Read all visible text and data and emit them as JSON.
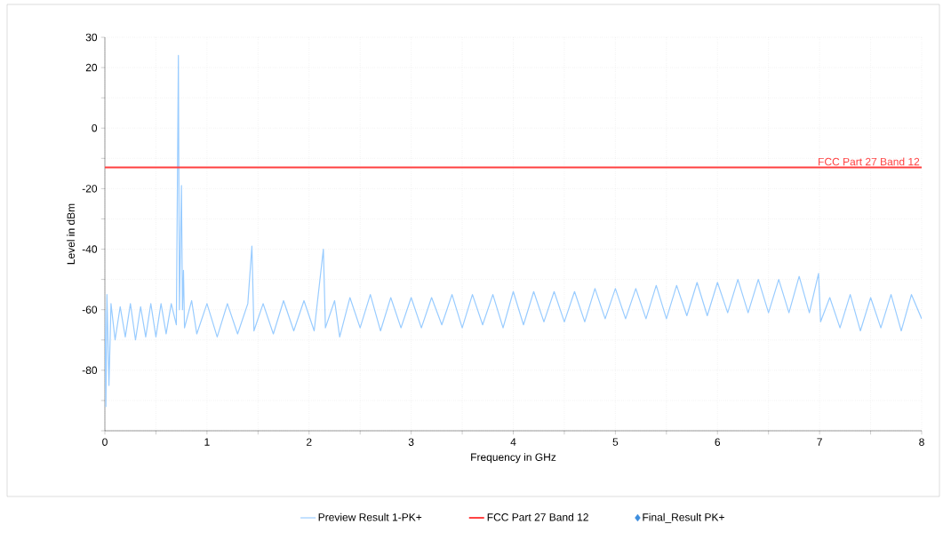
{
  "chart_data": {
    "type": "line",
    "xlabel": "Frequency in GHz",
    "ylabel": "Level in dBm",
    "xlim": [
      0,
      8
    ],
    "ylim": [
      -100,
      30
    ],
    "xticks": [
      0,
      {
        "value": 0.5,
        "label": null
      },
      1,
      {
        "value": 1.5,
        "label": null
      },
      2,
      {
        "value": 2.5,
        "label": null
      },
      3,
      {
        "value": 3.5,
        "label": null
      },
      4,
      {
        "value": 4.5,
        "label": null
      },
      5,
      {
        "value": 5.5,
        "label": null
      },
      6,
      {
        "value": 6.5,
        "label": null
      },
      7,
      {
        "value": 7.5,
        "label": null
      },
      8
    ],
    "yticks": [
      {
        "value": -100,
        "label": null
      },
      {
        "value": -90,
        "label": null
      },
      -80,
      {
        "value": -70,
        "label": null
      },
      -60,
      {
        "value": -50,
        "label": null
      },
      -40,
      {
        "value": -30,
        "label": null
      },
      -20,
      {
        "value": -10,
        "label": null
      },
      0,
      {
        "value": 10,
        "label": null
      },
      20,
      30
    ],
    "grid": true,
    "legend": "bottom",
    "line_style": "solid",
    "ref_lines": [
      {
        "axis": "y",
        "value": -13,
        "label": "FCC Part 27 Band 12",
        "color": "#ff4040"
      }
    ],
    "series": [
      {
        "name": "Preview Result 1-PK+",
        "color": "#99ccff",
        "x": [
          0,
          0.01,
          0.02,
          0.04,
          0.06,
          0.1,
          0.15,
          0.2,
          0.25,
          0.3,
          0.35,
          0.4,
          0.45,
          0.5,
          0.55,
          0.6,
          0.65,
          0.7,
          0.72,
          0.73,
          0.75,
          0.76,
          0.77,
          0.78,
          0.85,
          0.9,
          1.0,
          1.1,
          1.2,
          1.3,
          1.4,
          1.44,
          1.46,
          1.55,
          1.65,
          1.75,
          1.85,
          1.95,
          2.05,
          2.14,
          2.16,
          2.25,
          2.3,
          2.4,
          2.5,
          2.6,
          2.7,
          2.8,
          2.9,
          3.0,
          3.1,
          3.2,
          3.3,
          3.4,
          3.5,
          3.6,
          3.7,
          3.8,
          3.9,
          4.0,
          4.1,
          4.2,
          4.3,
          4.4,
          4.5,
          4.6,
          4.7,
          4.8,
          4.9,
          5.0,
          5.1,
          5.2,
          5.3,
          5.4,
          5.5,
          5.6,
          5.7,
          5.8,
          5.9,
          6.0,
          6.1,
          6.2,
          6.3,
          6.4,
          6.5,
          6.6,
          6.7,
          6.8,
          6.9,
          6.99,
          7.01,
          7.1,
          7.2,
          7.3,
          7.4,
          7.5,
          7.6,
          7.7,
          7.8,
          7.9,
          8.0
        ],
        "values": [
          -60,
          -92,
          -55,
          -85,
          -58,
          -70,
          -59,
          -69,
          -58,
          -70,
          -59,
          -69,
          -58,
          -69,
          -58,
          -68,
          -58,
          -65,
          24,
          -60,
          -19,
          -60,
          -47,
          -66,
          -57,
          -68,
          -58,
          -69,
          -58,
          -68,
          -58,
          -39,
          -67,
          -58,
          -68,
          -57,
          -67,
          -57,
          -67,
          -40,
          -66,
          -57,
          -69,
          -56,
          -66,
          -55,
          -67,
          -56,
          -66,
          -56,
          -66,
          -56,
          -65,
          -55,
          -66,
          -55,
          -65,
          -55,
          -66,
          -54,
          -65,
          -54,
          -64,
          -54,
          -64,
          -54,
          -64,
          -53,
          -63,
          -53,
          -63,
          -53,
          -63,
          -52,
          -63,
          -52,
          -62,
          -51,
          -62,
          -51,
          -61,
          -50,
          -61,
          -50,
          -61,
          -50,
          -61,
          -49,
          -61,
          -48,
          -64,
          -56,
          -66,
          -55,
          -67,
          -56,
          -66,
          -55,
          -67,
          -55,
          -63
        ]
      },
      {
        "name": "Final_Result PK+",
        "color": "#3e8ede",
        "type": "scatter",
        "marker": "diamond"
      }
    ]
  }
}
